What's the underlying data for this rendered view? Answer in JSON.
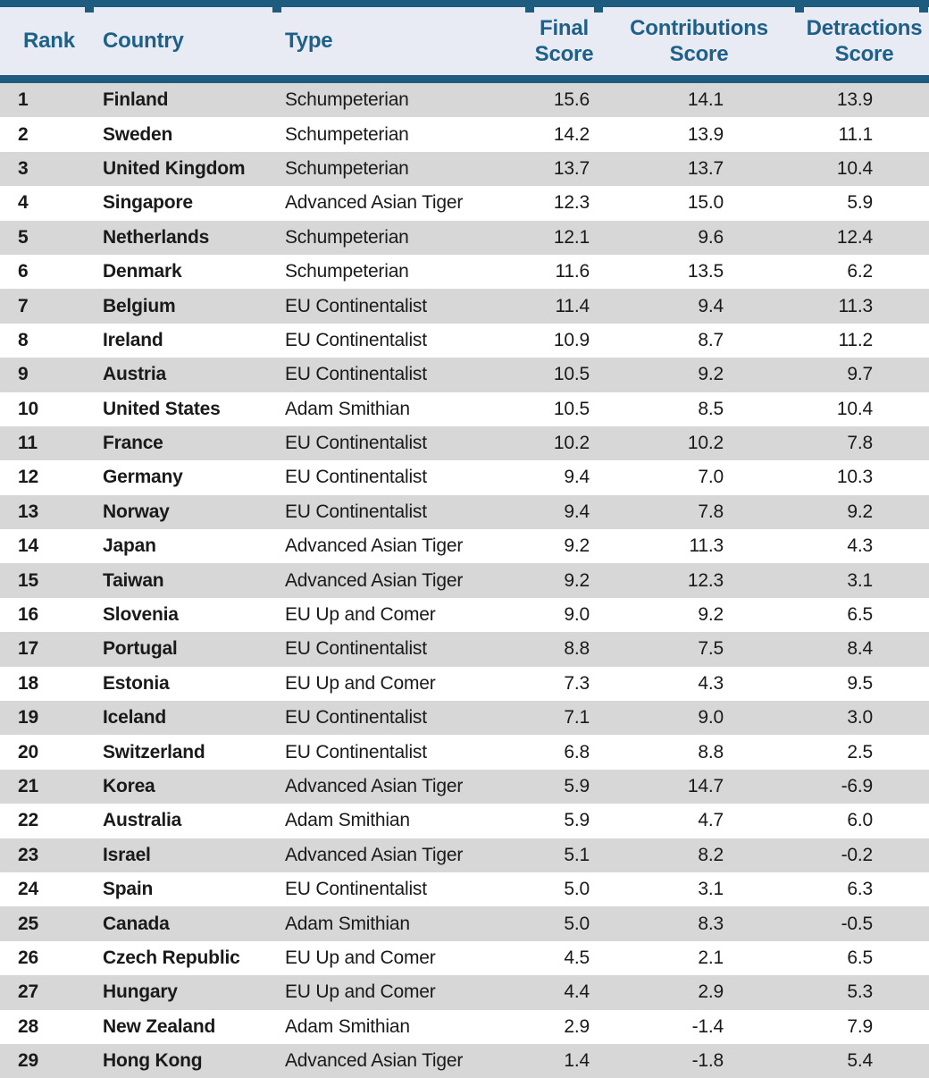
{
  "chart_data": {
    "type": "table",
    "columns": [
      "Rank",
      "Country",
      "Type",
      "Final Score",
      "Contributions Score",
      "Detractions Score"
    ],
    "rows": [
      [
        "1",
        "Finland",
        "Schumpeterian",
        "15.6",
        "14.1",
        "13.9"
      ],
      [
        "2",
        "Sweden",
        "Schumpeterian",
        "14.2",
        "13.9",
        "11.1"
      ],
      [
        "3",
        "United Kingdom",
        "Schumpeterian",
        "13.7",
        "13.7",
        "10.4"
      ],
      [
        "4",
        "Singapore",
        "Advanced Asian Tiger",
        "12.3",
        "15.0",
        "5.9"
      ],
      [
        "5",
        "Netherlands",
        "Schumpeterian",
        "12.1",
        "9.6",
        "12.4"
      ],
      [
        "6",
        "Denmark",
        "Schumpeterian",
        "11.6",
        "13.5",
        "6.2"
      ],
      [
        "7",
        "Belgium",
        "EU Continentalist",
        "11.4",
        "9.4",
        "11.3"
      ],
      [
        "8",
        "Ireland",
        "EU Continentalist",
        "10.9",
        "8.7",
        "11.2"
      ],
      [
        "9",
        "Austria",
        "EU Continentalist",
        "10.5",
        "9.2",
        "9.7"
      ],
      [
        "10",
        "United States",
        "Adam Smithian",
        "10.5",
        "8.5",
        "10.4"
      ],
      [
        "11",
        "France",
        "EU Continentalist",
        "10.2",
        "10.2",
        "7.8"
      ],
      [
        "12",
        "Germany",
        "EU Continentalist",
        "9.4",
        "7.0",
        "10.3"
      ],
      [
        "13",
        "Norway",
        "EU Continentalist",
        "9.4",
        "7.8",
        "9.2"
      ],
      [
        "14",
        "Japan",
        "Advanced Asian Tiger",
        "9.2",
        "11.3",
        "4.3"
      ],
      [
        "15",
        "Taiwan",
        "Advanced Asian Tiger",
        "9.2",
        "12.3",
        "3.1"
      ],
      [
        "16",
        "Slovenia",
        "EU Up and Comer",
        "9.0",
        "9.2",
        "6.5"
      ],
      [
        "17",
        "Portugal",
        "EU Continentalist",
        "8.8",
        "7.5",
        "8.4"
      ],
      [
        "18",
        "Estonia",
        "EU Up and Comer",
        "7.3",
        "4.3",
        "9.5"
      ],
      [
        "19",
        "Iceland",
        "EU Continentalist",
        "7.1",
        "9.0",
        "3.0"
      ],
      [
        "20",
        "Switzerland",
        "EU Continentalist",
        "6.8",
        "8.8",
        "2.5"
      ],
      [
        "21",
        "Korea",
        "Advanced Asian Tiger",
        "5.9",
        "14.7",
        "-6.9"
      ],
      [
        "22",
        "Australia",
        "Adam Smithian",
        "5.9",
        "4.7",
        "6.0"
      ],
      [
        "23",
        "Israel",
        "Advanced Asian Tiger",
        "5.1",
        "8.2",
        "-0.2"
      ],
      [
        "24",
        "Spain",
        "EU Continentalist",
        "5.0",
        "3.1",
        "6.3"
      ],
      [
        "25",
        "Canada",
        "Adam Smithian",
        "5.0",
        "8.3",
        "-0.5"
      ],
      [
        "26",
        "Czech Republic",
        "EU Up and Comer",
        "4.5",
        "2.1",
        "6.5"
      ],
      [
        "27",
        "Hungary",
        "EU Up and Comer",
        "4.4",
        "2.9",
        "5.3"
      ],
      [
        "28",
        "New Zealand",
        "Adam Smithian",
        "2.9",
        "-1.4",
        "7.9"
      ],
      [
        "29",
        "Hong Kong",
        "Advanced Asian Tiger",
        "1.4",
        "-1.8",
        "5.4"
      ]
    ],
    "layout": {
      "grid": "row-striped",
      "stripe_rows": "odd",
      "score_columns_alignment": "right",
      "label_columns_alignment": "left"
    }
  },
  "colors": {
    "accent_bar": "#1D5C7E",
    "header_bg": "#E8EBF4",
    "header_text": "#1E6088",
    "row_stripe": "#D7D7D7",
    "body_text": "#1A1A1A"
  }
}
